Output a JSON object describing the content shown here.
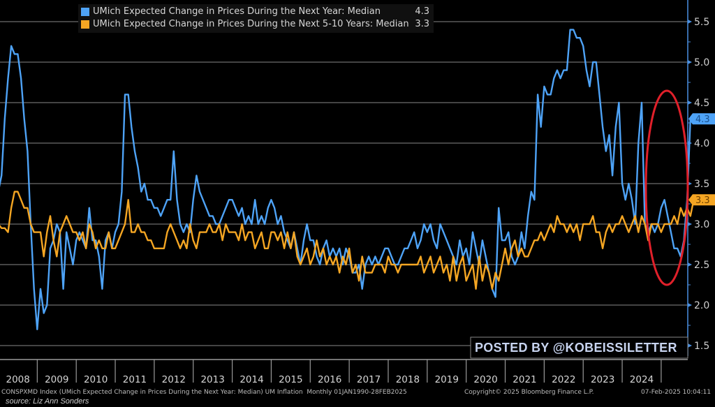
{
  "chart_data": {
    "type": "line",
    "title": "",
    "xlabel": "",
    "ylabel": "",
    "ylim": [
      1.4,
      5.65
    ],
    "yticks": [
      "1.5",
      "2.0",
      "2.5",
      "3.0",
      "3.5",
      "4.0",
      "4.5",
      "5.0",
      "5.5"
    ],
    "xticks": [
      "2008",
      "2009",
      "2010",
      "2011",
      "2012",
      "2013",
      "2014",
      "2015",
      "2016",
      "2017",
      "2018",
      "2019",
      "2020",
      "2021",
      "2022",
      "2023",
      "2024"
    ],
    "x_start": "Jan 2008",
    "x_end": "Feb 2025",
    "frequency": "monthly",
    "grid": true,
    "legend_position": "top-left",
    "series": [
      {
        "name": "UMich Expected Change in Prices During the Next Year: Median",
        "last_value": "4.3",
        "color": "#4ea3f7",
        "values": [
          3.4,
          3.6,
          4.3,
          4.8,
          5.2,
          5.1,
          5.1,
          4.8,
          4.3,
          3.9,
          3.0,
          2.2,
          1.7,
          2.2,
          1.9,
          2.0,
          2.7,
          2.8,
          3.0,
          2.9,
          2.2,
          2.9,
          2.7,
          2.5,
          2.8,
          2.9,
          2.8,
          2.7,
          3.2,
          2.8,
          2.8,
          2.6,
          2.2,
          2.8,
          2.9,
          2.7,
          2.9,
          3.0,
          3.4,
          4.6,
          4.6,
          4.2,
          3.9,
          3.7,
          3.4,
          3.5,
          3.3,
          3.3,
          3.2,
          3.2,
          3.1,
          3.2,
          3.3,
          3.3,
          3.9,
          3.3,
          3.0,
          2.9,
          3.0,
          2.9,
          3.3,
          3.6,
          3.4,
          3.3,
          3.2,
          3.1,
          3.1,
          3.0,
          3.0,
          3.1,
          3.2,
          3.3,
          3.3,
          3.2,
          3.1,
          3.2,
          3.0,
          3.1,
          3.0,
          3.3,
          3.0,
          3.1,
          3.0,
          3.2,
          3.3,
          3.2,
          3.0,
          3.1,
          2.9,
          2.8,
          2.7,
          2.9,
          2.7,
          2.5,
          2.8,
          3.0,
          2.8,
          2.8,
          2.6,
          2.5,
          2.7,
          2.8,
          2.6,
          2.7,
          2.6,
          2.7,
          2.5,
          2.7,
          2.6,
          2.4,
          2.4,
          2.5,
          2.2,
          2.5,
          2.6,
          2.5,
          2.6,
          2.5,
          2.6,
          2.7,
          2.7,
          2.6,
          2.5,
          2.5,
          2.6,
          2.7,
          2.7,
          2.8,
          2.9,
          2.7,
          2.8,
          3.0,
          2.9,
          3.0,
          2.8,
          2.7,
          3.0,
          2.9,
          2.8,
          2.7,
          2.6,
          2.5,
          2.8,
          2.6,
          2.7,
          2.5,
          2.9,
          2.7,
          2.5,
          2.8,
          2.6,
          2.4,
          2.2,
          2.1,
          3.2,
          2.8,
          2.8,
          2.9,
          2.6,
          2.5,
          2.6,
          2.9,
          2.7,
          3.1,
          3.4,
          3.3,
          4.6,
          4.2,
          4.7,
          4.6,
          4.6,
          4.8,
          4.9,
          4.8,
          4.9,
          4.9,
          5.4,
          5.4,
          5.3,
          5.3,
          5.2,
          4.9,
          4.7,
          5.0,
          5.0,
          4.6,
          4.2,
          3.9,
          4.1,
          3.6,
          4.2,
          4.5,
          3.5,
          3.3,
          3.5,
          3.3,
          3.0,
          4.0,
          4.5,
          3.0,
          2.9,
          3.0,
          2.9,
          3.0,
          3.2,
          3.3,
          3.1,
          2.9,
          2.7,
          2.7,
          2.6,
          2.8,
          3.3,
          4.3
        ]
      },
      {
        "name": "UMich Expected Change in Prices During the Next 5-10 Years: Median",
        "last_value": "3.3",
        "color": "#f5a623",
        "values": [
          3.0,
          2.95,
          2.95,
          2.9,
          3.2,
          3.4,
          3.4,
          3.3,
          3.2,
          3.2,
          3.0,
          2.9,
          2.9,
          2.9,
          2.6,
          2.9,
          3.1,
          2.8,
          2.6,
          2.9,
          3.0,
          3.1,
          3.0,
          2.9,
          2.9,
          2.8,
          2.9,
          2.7,
          3.0,
          2.9,
          2.7,
          2.8,
          2.7,
          2.7,
          2.9,
          2.7,
          2.7,
          2.8,
          2.9,
          3.0,
          3.3,
          2.9,
          2.9,
          3.0,
          2.9,
          2.9,
          2.8,
          2.8,
          2.7,
          2.7,
          2.7,
          2.7,
          2.9,
          3.0,
          2.9,
          2.8,
          2.7,
          2.8,
          2.7,
          3.0,
          2.8,
          2.7,
          2.9,
          2.9,
          2.9,
          3.0,
          2.9,
          2.9,
          3.0,
          2.8,
          3.0,
          2.9,
          2.9,
          2.9,
          2.8,
          3.0,
          2.8,
          2.9,
          2.9,
          2.7,
          2.8,
          2.9,
          2.7,
          2.7,
          2.9,
          2.9,
          2.8,
          2.9,
          2.7,
          2.9,
          2.7,
          2.9,
          2.6,
          2.5,
          2.6,
          2.7,
          2.5,
          2.6,
          2.8,
          2.6,
          2.7,
          2.5,
          2.6,
          2.5,
          2.6,
          2.4,
          2.6,
          2.5,
          2.7,
          2.4,
          2.5,
          2.3,
          2.6,
          2.4,
          2.4,
          2.4,
          2.5,
          2.5,
          2.5,
          2.4,
          2.6,
          2.5,
          2.5,
          2.4,
          2.5,
          2.5,
          2.5,
          2.5,
          2.5,
          2.5,
          2.6,
          2.4,
          2.5,
          2.6,
          2.4,
          2.5,
          2.6,
          2.4,
          2.5,
          2.3,
          2.6,
          2.3,
          2.5,
          2.6,
          2.3,
          2.4,
          2.5,
          2.2,
          2.6,
          2.3,
          2.5,
          2.4,
          2.2,
          2.4,
          2.3,
          2.5,
          2.7,
          2.5,
          2.7,
          2.8,
          2.6,
          2.7,
          2.6,
          2.6,
          2.7,
          2.8,
          2.8,
          2.9,
          2.8,
          2.9,
          3.0,
          2.9,
          3.1,
          3.0,
          3.0,
          2.9,
          3.0,
          2.9,
          3.0,
          2.8,
          3.0,
          3.0,
          3.0,
          3.1,
          2.9,
          2.9,
          2.7,
          2.9,
          3.0,
          2.9,
          3.0,
          3.0,
          3.1,
          3.0,
          2.9,
          3.0,
          3.1,
          2.9,
          3.1,
          3.0,
          2.8,
          3.0,
          3.0,
          3.0,
          2.9,
          3.0,
          3.0,
          3.0,
          3.1,
          3.0,
          3.2,
          3.1,
          3.2,
          3.1,
          3.3
        ]
      }
    ],
    "annotations": [
      "red ellipse highlighting the late-2024 to Feb-2025 spike in 1-year expectations"
    ]
  },
  "legend": {
    "items": [
      {
        "label": "UMich Expected Change in Prices During the Next Year: Median",
        "value": "4.3",
        "color": "#4ea3f7"
      },
      {
        "label": "UMich Expected Change in Prices During the Next 5-10 Years: Median",
        "value": "3.3",
        "color": "#f5a623"
      }
    ]
  },
  "axis_badges": {
    "blue": "4.3",
    "orange": "3.3"
  },
  "watermark": "POSTED BY @KOBEISSILETTER",
  "footer": {
    "description": "CONSPXMD Index (UMich Expected Change in Prices During the Next Year: Median) UM Inflation  Monthly 01JAN1990-28FEB2025",
    "copyright": "Copyright© 2025 Bloomberg Finance L.P.",
    "timestamp": "07-Feb-2025 10:04:11",
    "source": "source: Liz Ann Sonders"
  },
  "colors": {
    "background": "#000000",
    "grid": "#5a5a5a",
    "axis": "#4a90e2",
    "highlight": "#e0202a"
  }
}
